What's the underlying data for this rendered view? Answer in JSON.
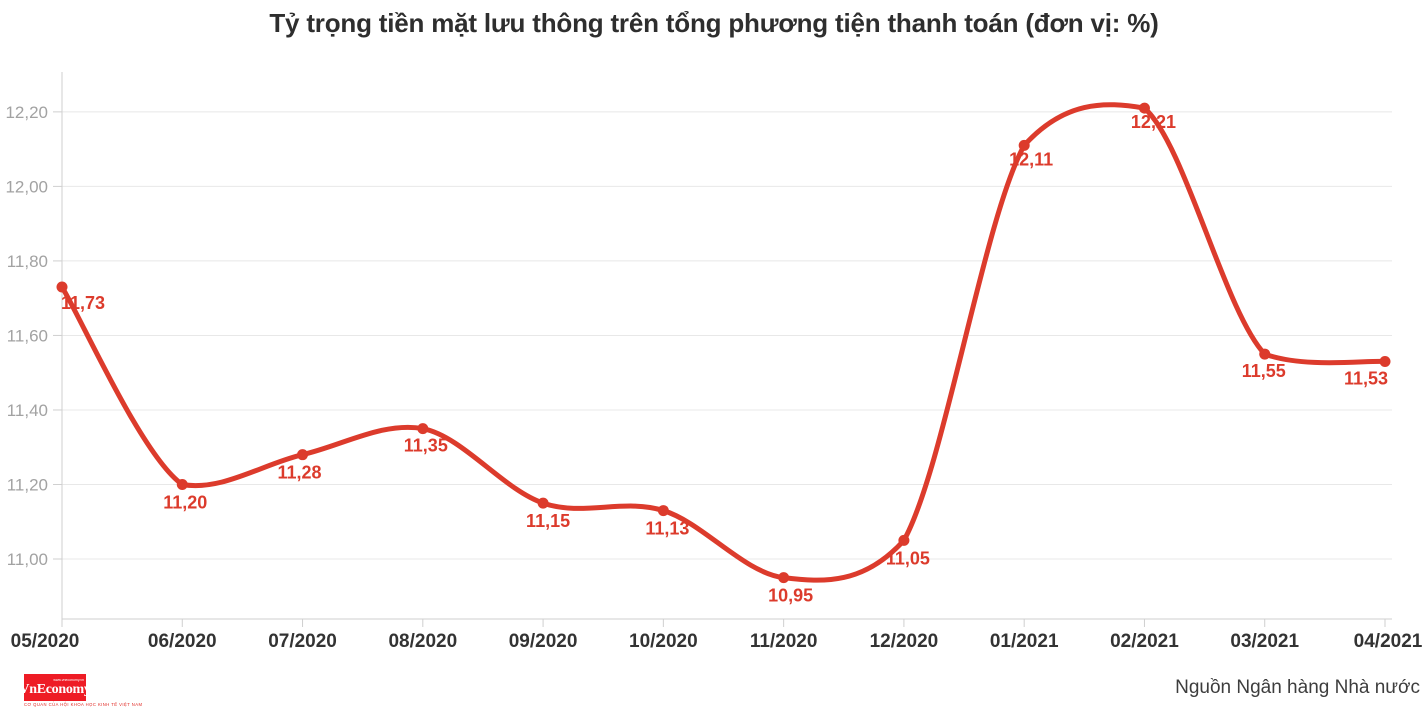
{
  "chart_data": {
    "type": "line",
    "title": "Tỷ trọng tiền mặt lưu thông trên tổng phương tiện thanh toán (đơn vị: %)",
    "categories": [
      "05/2020",
      "06/2020",
      "07/2020",
      "08/2020",
      "09/2020",
      "10/2020",
      "11/2020",
      "12/2020",
      "01/2021",
      "02/2021",
      "03/2021",
      "04/2021"
    ],
    "values": [
      11.73,
      11.2,
      11.28,
      11.35,
      11.15,
      11.13,
      10.95,
      11.05,
      12.11,
      12.21,
      11.55,
      11.53
    ],
    "point_labels": [
      "11,73",
      "11,20",
      "11,28",
      "11,35",
      "11,15",
      "11,13",
      "10,95",
      "11,05",
      "12,11",
      "12,21",
      "11,55",
      "11,53"
    ],
    "ytick_values": [
      11.0,
      11.2,
      11.4,
      11.6,
      11.8,
      12.0,
      12.2
    ],
    "ytick_labels": [
      "11,00",
      "11,20",
      "11,40",
      "11,60",
      "11,80",
      "12,00",
      "12,20"
    ],
    "ylim": [
      10.84,
      12.31
    ],
    "xlabel": "",
    "ylabel": "",
    "grid": true,
    "legend": false,
    "line_color": "#dc3b2c",
    "marker_color": "#dc3b2c",
    "point_label_color": "#dc3b2c",
    "grid_color": "#e8e8e8",
    "axis_color": "#cfcfcf",
    "xlabel_color": "#333333",
    "ylabel_color": "#a2a2a2"
  },
  "footer": {
    "source": "Nguồn Ngân hàng Nhà nước",
    "logo": {
      "top_line": "www.vneconomy.vn",
      "name": "VnEconomy",
      "sub_line": "CƠ QUAN CỦA HỘI KHOA HỌC KINH TẾ VIỆT NAM",
      "bg_color": "#ee1c25",
      "sub_color": "#e02621"
    }
  }
}
